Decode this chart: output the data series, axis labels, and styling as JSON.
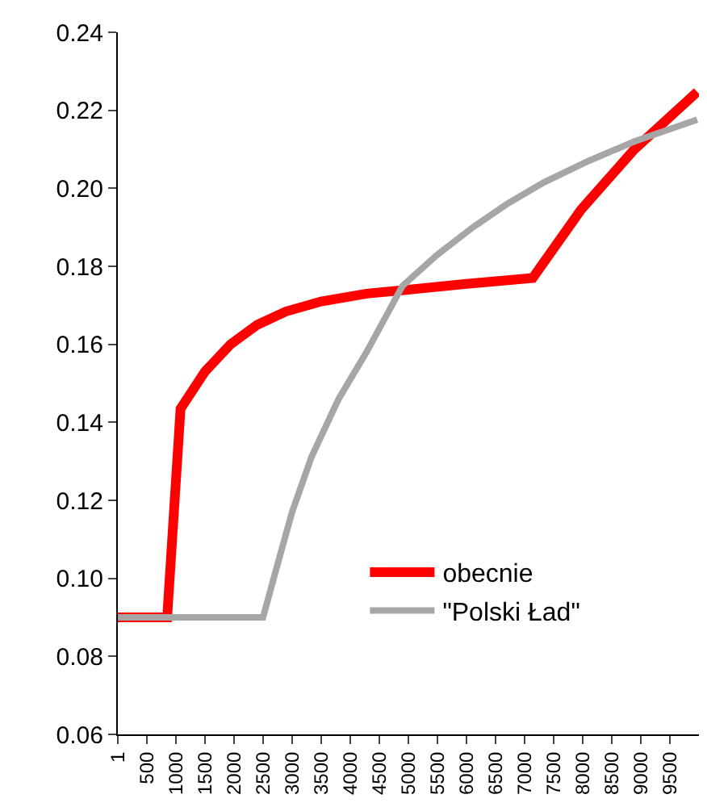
{
  "chart_data": {
    "type": "line",
    "xlim": [
      1,
      10000
    ],
    "xticks": [
      1,
      500,
      1000,
      1500,
      2000,
      2500,
      3000,
      3500,
      4000,
      4500,
      5000,
      5500,
      6000,
      6500,
      7000,
      7500,
      8000,
      8500,
      9000,
      9500
    ],
    "ylim": [
      0.06,
      0.24
    ],
    "yticks": [
      {
        "value": 0.06,
        "label": "0.06"
      },
      {
        "value": 0.08,
        "label": "0.08"
      },
      {
        "value": 0.1,
        "label": "0.10"
      },
      {
        "value": 0.12,
        "label": "0.12"
      },
      {
        "value": 0.14,
        "label": "0.14"
      },
      {
        "value": 0.16,
        "label": "0.16"
      },
      {
        "value": 0.18,
        "label": "0.18"
      },
      {
        "value": 0.2,
        "label": "0.20"
      },
      {
        "value": 0.22,
        "label": "0.22"
      },
      {
        "value": 0.24,
        "label": "0.24"
      }
    ],
    "grid": false,
    "legend": "bottom right",
    "marker": "none",
    "line_style": "solid",
    "series": [
      {
        "name": "obecnie",
        "color": "#ff0000",
        "x": [
          1,
          850,
          1080,
          1500,
          1940,
          2400,
          2890,
          3500,
          4280,
          5000,
          6000,
          7140,
          7970,
          8890,
          9970
        ],
        "values": [
          0.09,
          0.09,
          0.1435,
          0.153,
          0.16,
          0.165,
          0.1684,
          0.171,
          0.173,
          0.174,
          0.1755,
          0.177,
          0.1945,
          0.21,
          0.2247
        ]
      },
      {
        "name": "\"Polski Ład\"",
        "color": "#a6a6a6",
        "x": [
          1,
          2500,
          2690,
          3000,
          3330,
          3800,
          4280,
          4900,
          5500,
          6110,
          6700,
          7330,
          8100,
          8890,
          9970
        ],
        "values": [
          0.09,
          0.09,
          0.1004,
          0.117,
          0.131,
          0.146,
          0.158,
          0.175,
          0.183,
          0.19,
          0.196,
          0.2015,
          0.207,
          0.212,
          0.2176
        ]
      }
    ]
  }
}
